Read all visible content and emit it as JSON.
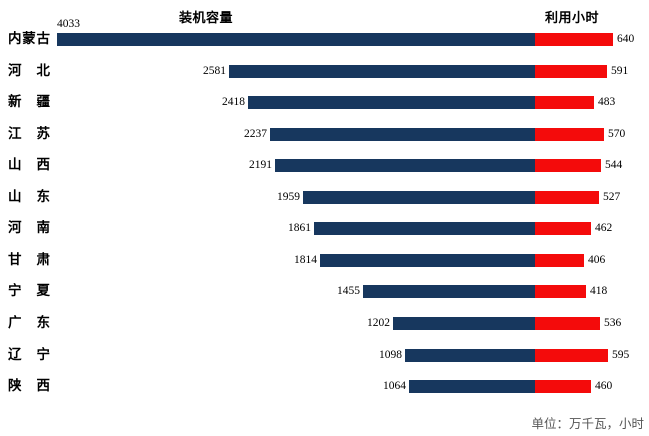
{
  "chart_data": {
    "type": "bar",
    "variant": "paired-horizontal",
    "left_title": "装机容量",
    "right_title": "利用小时",
    "unit_note": "单位：万千瓦，小时",
    "categories": [
      "内蒙古",
      "河北",
      "新疆",
      "江苏",
      "山西",
      "山东",
      "河南",
      "甘肃",
      "宁夏",
      "广东",
      "辽宁",
      "陕西"
    ],
    "series": [
      {
        "name": "装机容量",
        "color": "#17375E",
        "values": [
          4033,
          2581,
          2418,
          2237,
          2191,
          1959,
          1861,
          1814,
          1455,
          1202,
          1098,
          1064
        ]
      },
      {
        "name": "利用小时",
        "color": "#F40B0B",
        "values": [
          640,
          591,
          483,
          570,
          544,
          527,
          462,
          406,
          418,
          536,
          595,
          460
        ]
      }
    ],
    "left_axis_range": [
      0,
      4033
    ],
    "right_axis_range": [
      0,
      640
    ],
    "grid": false,
    "legend_position": "titles-above-columns",
    "background_color": "#FFFFFF"
  }
}
